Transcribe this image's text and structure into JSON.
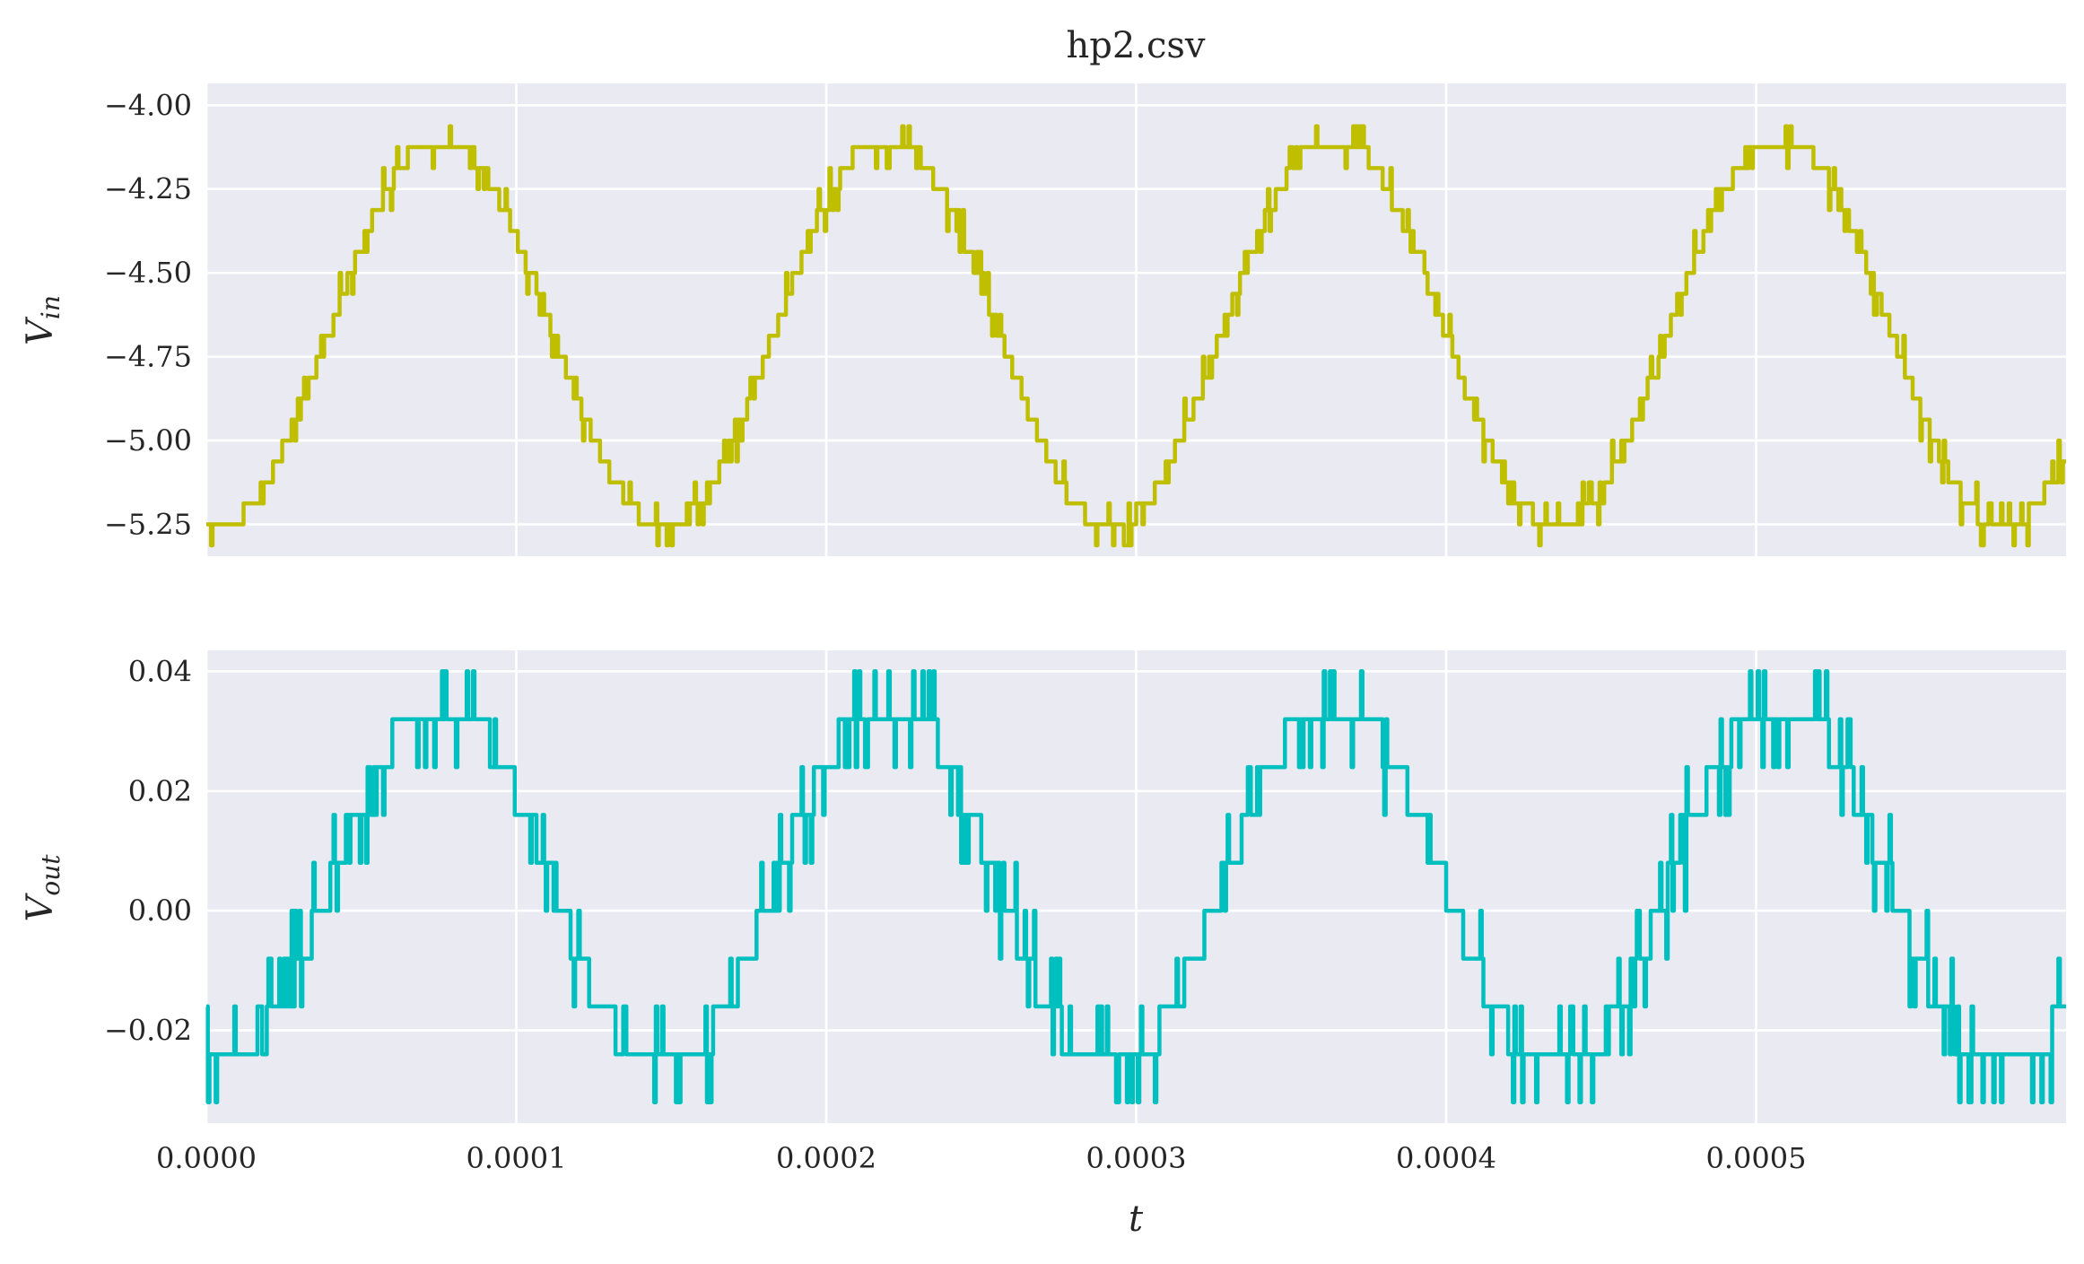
{
  "chart_data": [
    {
      "type": "line",
      "title": "hp2.csv",
      "xlabel": "",
      "ylabel": {
        "main": "V",
        "sub": "in"
      },
      "xlim": [
        0,
        0.0006
      ],
      "ylim": [
        -5.345,
        -3.935
      ],
      "yticks": [
        -4.0,
        -4.25,
        -4.5,
        -4.75,
        -5.0,
        -5.25
      ],
      "ytick_labels": [
        "−4.00",
        "−4.25",
        "−4.50",
        "−4.75",
        "−5.00",
        "−5.25"
      ],
      "xticks": [
        0.0,
        0.0001,
        0.0002,
        0.0003,
        0.0004,
        0.0005
      ],
      "grid": true,
      "color": "#bfbf00",
      "signal": {
        "offset": -4.675,
        "amplitude": 0.58,
        "period": 0.000144,
        "phase_t0": 3.5e-06,
        "quantum": 0.0625,
        "noise": 0.0625
      }
    },
    {
      "type": "line",
      "title": "",
      "xlabel": "t",
      "ylabel": {
        "main": "V",
        "sub": "out"
      },
      "xlim": [
        0,
        0.0006
      ],
      "ylim": [
        -0.0355,
        0.0435
      ],
      "yticks": [
        0.04,
        0.02,
        0.0,
        -0.02
      ],
      "ytick_labels": [
        "0.04",
        "0.02",
        "0.00",
        "−0.02"
      ],
      "xticks": [
        0.0,
        0.0001,
        0.0002,
        0.0003,
        0.0004,
        0.0005
      ],
      "xtick_labels": [
        "0.0000",
        "0.0001",
        "0.0002",
        "0.0003",
        "0.0004",
        "0.0005"
      ],
      "grid": true,
      "color": "#00bfbf",
      "signal": {
        "offset": 0.004,
        "amplitude": 0.031,
        "period": 0.000144,
        "phase_t0": 3.5e-06,
        "quantum": 0.008,
        "noise": 0.008
      }
    }
  ]
}
